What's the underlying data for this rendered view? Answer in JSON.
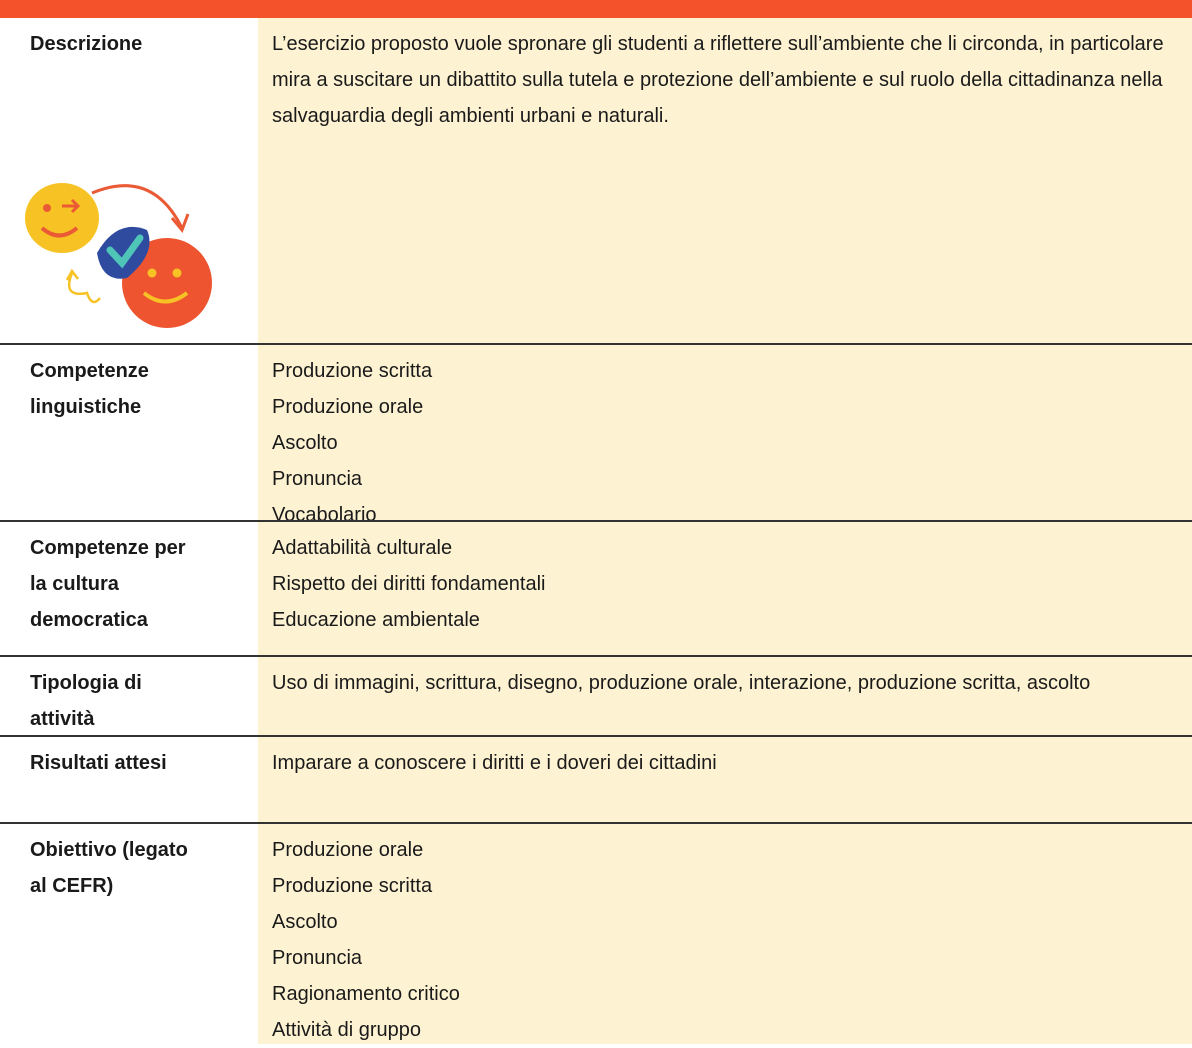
{
  "table": {
    "rows": [
      {
        "label": "Descrizione",
        "content": [
          "L’esercizio proposto vuole spronare gli studenti a riflettere sull’ambiente che li circonda, in particolare mira a suscitare un dibattito sulla tutela e protezione dell’ambiente e sul ruolo della cittadinanza nella salvaguardia degli ambienti urbani e naturali."
        ]
      },
      {
        "label": "Competenze linguistiche",
        "content": [
          "Produzione scritta",
          "Produzione orale",
          "Ascolto",
          "Pronuncia",
          "Vocabolario"
        ]
      },
      {
        "label": "Competenze per la cultura democratica",
        "content": [
          "Adattabilità culturale",
          "Rispetto dei diritti fondamentali",
          "Educazione ambientale"
        ]
      },
      {
        "label": "Tipologia di attività",
        "content": [
          "Uso di immagini, scrittura, disegno, produzione orale, interazione, produzione scritta, ascolto"
        ]
      },
      {
        "label": "Risultati attesi",
        "content": [
          "Imparare a conoscere i diritti e i doveri dei cittadini"
        ]
      },
      {
        "label": "Obiettivo (legato al CEFR)",
        "content": [
          "Produzione orale",
          "Produzione scritta",
          "Ascolto",
          "Pronuncia",
          "Ragionamento critico",
          "Attività di gruppo"
        ]
      }
    ]
  }
}
